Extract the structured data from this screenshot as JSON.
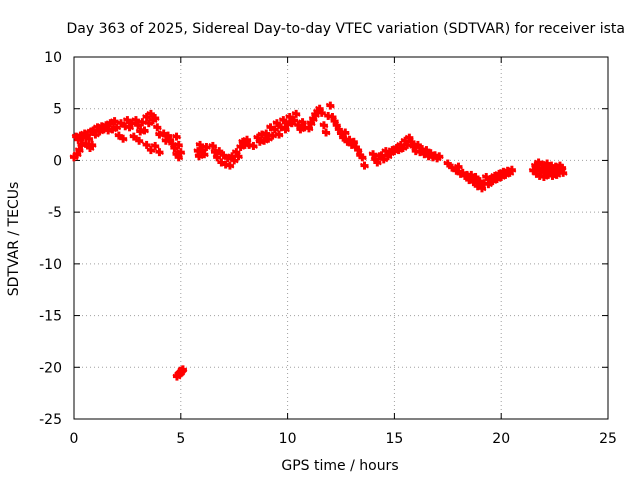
{
  "chart_data": {
    "type": "scatter",
    "title": "Day 363 of 2025, Sidereal Day-to-day VTEC variation (SDTVAR) for receiver ista",
    "xlabel": "GPS time / hours",
    "ylabel": "SDTVAR / TECUs",
    "xlim": [
      0,
      25
    ],
    "ylim": [
      -25,
      10
    ],
    "xticks": [
      0,
      5,
      10,
      15,
      20,
      25
    ],
    "yticks": [
      -25,
      -20,
      -15,
      -10,
      -5,
      0,
      5,
      10
    ],
    "grid": true,
    "marker": "+",
    "series": [
      {
        "name": "SDTVAR",
        "color": "#ff0000",
        "points": [
          [
            0.0,
            0.3
          ],
          [
            0.1,
            2.3
          ],
          [
            0.15,
            0.6
          ],
          [
            0.2,
            2.0
          ],
          [
            0.25,
            1.0
          ],
          [
            0.3,
            2.4
          ],
          [
            0.35,
            1.5
          ],
          [
            0.4,
            2.2
          ],
          [
            0.5,
            2.6
          ],
          [
            0.55,
            1.6
          ],
          [
            0.6,
            2.5
          ],
          [
            0.7,
            2.1
          ],
          [
            0.75,
            1.2
          ],
          [
            0.8,
            2.8
          ],
          [
            0.85,
            1.5
          ],
          [
            0.9,
            2.9
          ],
          [
            1.0,
            2.5
          ],
          [
            1.1,
            3.2
          ],
          [
            1.2,
            2.8
          ],
          [
            1.3,
            3.3
          ],
          [
            1.4,
            3.0
          ],
          [
            1.5,
            3.4
          ],
          [
            1.6,
            2.9
          ],
          [
            1.7,
            3.6
          ],
          [
            1.8,
            3.0
          ],
          [
            1.9,
            3.8
          ],
          [
            2.0,
            3.2
          ],
          [
            2.1,
            2.4
          ],
          [
            2.2,
            3.6
          ],
          [
            2.3,
            2.1
          ],
          [
            2.4,
            3.3
          ],
          [
            2.5,
            3.9
          ],
          [
            2.6,
            3.2
          ],
          [
            2.7,
            3.6
          ],
          [
            2.8,
            2.3
          ],
          [
            2.9,
            3.9
          ],
          [
            3.0,
            3.4
          ],
          [
            3.05,
            1.9
          ],
          [
            3.1,
            2.8
          ],
          [
            3.2,
            3.7
          ],
          [
            3.3,
            2.9
          ],
          [
            3.4,
            4.2
          ],
          [
            3.5,
            3.6
          ],
          [
            3.6,
            4.5
          ],
          [
            3.7,
            3.9
          ],
          [
            3.8,
            4.1
          ],
          [
            3.9,
            3.2
          ],
          [
            4.0,
            2.5
          ],
          [
            3.4,
            1.5
          ],
          [
            3.6,
            1.0
          ],
          [
            3.8,
            1.4
          ],
          [
            4.0,
            0.8
          ],
          [
            4.2,
            2.6
          ],
          [
            4.3,
            1.9
          ],
          [
            4.4,
            2.4
          ],
          [
            4.5,
            2.0
          ],
          [
            4.6,
            1.6
          ],
          [
            4.7,
            1.2
          ],
          [
            4.8,
            2.3
          ],
          [
            4.9,
            1.5
          ],
          [
            4.8,
            0.6
          ],
          [
            4.9,
            0.3
          ],
          [
            5.0,
            0.8
          ],
          [
            4.82,
            -20.9
          ],
          [
            4.9,
            -20.7
          ],
          [
            4.95,
            -20.6
          ],
          [
            5.0,
            -20.5
          ],
          [
            5.05,
            -20.3
          ],
          [
            5.1,
            -20.2
          ],
          [
            5.8,
            0.9
          ],
          [
            5.85,
            0.4
          ],
          [
            5.9,
            1.5
          ],
          [
            6.0,
            1.0
          ],
          [
            6.1,
            0.6
          ],
          [
            6.2,
            1.3
          ],
          [
            6.5,
            1.4
          ],
          [
            6.6,
            0.8
          ],
          [
            6.7,
            0.3
          ],
          [
            6.8,
            0.9
          ],
          [
            6.9,
            -0.2
          ],
          [
            7.0,
            0.5
          ],
          [
            7.1,
            -0.4
          ],
          [
            7.2,
            0.2
          ],
          [
            7.3,
            -0.5
          ],
          [
            7.4,
            0.4
          ],
          [
            7.5,
            0.0
          ],
          [
            7.6,
            0.8
          ],
          [
            7.7,
            0.4
          ],
          [
            7.8,
            1.3
          ],
          [
            7.9,
            1.8
          ],
          [
            8.0,
            1.5
          ],
          [
            8.1,
            2.0
          ],
          [
            8.2,
            1.5
          ],
          [
            8.4,
            1.4
          ],
          [
            8.6,
            2.2
          ],
          [
            8.7,
            1.8
          ],
          [
            8.8,
            2.5
          ],
          [
            8.9,
            1.9
          ],
          [
            9.0,
            2.6
          ],
          [
            9.1,
            2.1
          ],
          [
            9.2,
            3.2
          ],
          [
            9.3,
            2.4
          ],
          [
            9.4,
            3.0
          ],
          [
            9.5,
            3.6
          ],
          [
            9.6,
            2.5
          ],
          [
            9.7,
            3.2
          ],
          [
            9.8,
            3.9
          ],
          [
            9.9,
            3.0
          ],
          [
            10.0,
            3.5
          ],
          [
            10.1,
            4.2
          ],
          [
            10.2,
            3.6
          ],
          [
            10.3,
            3.9
          ],
          [
            10.4,
            4.5
          ],
          [
            10.5,
            3.4
          ],
          [
            10.6,
            3.0
          ],
          [
            10.7,
            3.7
          ],
          [
            10.8,
            3.2
          ],
          [
            11.0,
            3.1
          ],
          [
            11.1,
            3.6
          ],
          [
            11.2,
            4.0
          ],
          [
            11.3,
            4.4
          ],
          [
            11.4,
            4.7
          ],
          [
            11.5,
            5.0
          ],
          [
            11.6,
            4.6
          ],
          [
            11.7,
            3.4
          ],
          [
            11.8,
            2.7
          ],
          [
            11.9,
            4.3
          ],
          [
            12.0,
            5.3
          ],
          [
            12.1,
            4.2
          ],
          [
            12.2,
            3.8
          ],
          [
            12.3,
            3.4
          ],
          [
            12.4,
            3.0
          ],
          [
            12.5,
            2.6
          ],
          [
            12.6,
            2.2
          ],
          [
            12.7,
            2.7
          ],
          [
            12.8,
            1.8
          ],
          [
            12.9,
            2.0
          ],
          [
            13.0,
            1.5
          ],
          [
            13.1,
            1.8
          ],
          [
            13.2,
            1.3
          ],
          [
            13.3,
            1.0
          ],
          [
            13.4,
            0.5
          ],
          [
            13.5,
            0.3
          ],
          [
            13.6,
            -0.5
          ],
          [
            14.0,
            0.6
          ],
          [
            14.1,
            0.1
          ],
          [
            14.2,
            -0.2
          ],
          [
            14.3,
            0.4
          ],
          [
            14.4,
            0.5
          ],
          [
            14.5,
            0.1
          ],
          [
            14.6,
            0.9
          ],
          [
            14.7,
            0.4
          ],
          [
            14.8,
            0.7
          ],
          [
            14.9,
            1.0
          ],
          [
            15.0,
            0.9
          ],
          [
            15.1,
            1.2
          ],
          [
            15.2,
            1.0
          ],
          [
            15.3,
            1.5
          ],
          [
            15.4,
            1.2
          ],
          [
            15.5,
            1.9
          ],
          [
            15.6,
            1.5
          ],
          [
            15.7,
            2.2
          ],
          [
            15.8,
            1.8
          ],
          [
            15.9,
            1.3
          ],
          [
            16.0,
            0.9
          ],
          [
            16.1,
            1.5
          ],
          [
            16.2,
            0.8
          ],
          [
            16.3,
            1.1
          ],
          [
            16.4,
            0.6
          ],
          [
            16.5,
            1.0
          ],
          [
            16.6,
            0.4
          ],
          [
            16.7,
            0.7
          ],
          [
            16.8,
            0.3
          ],
          [
            16.9,
            0.5
          ],
          [
            17.0,
            0.2
          ],
          [
            17.1,
            0.4
          ],
          [
            17.5,
            -0.3
          ],
          [
            17.7,
            -0.7
          ],
          [
            17.9,
            -1.0
          ],
          [
            18.0,
            -0.6
          ],
          [
            18.1,
            -1.3
          ],
          [
            18.2,
            -1.2
          ],
          [
            18.3,
            -1.5
          ],
          [
            18.4,
            -1.4
          ],
          [
            18.5,
            -1.9
          ],
          [
            18.6,
            -1.4
          ],
          [
            18.7,
            -2.1
          ],
          [
            18.8,
            -1.6
          ],
          [
            18.9,
            -2.5
          ],
          [
            19.0,
            -2.0
          ],
          [
            19.1,
            -2.7
          ],
          [
            19.2,
            -2.2
          ],
          [
            19.3,
            -1.6
          ],
          [
            19.4,
            -2.3
          ],
          [
            19.5,
            -1.8
          ],
          [
            19.6,
            -2.0
          ],
          [
            19.7,
            -1.5
          ],
          [
            19.8,
            -1.8
          ],
          [
            19.9,
            -1.3
          ],
          [
            20.0,
            -1.6
          ],
          [
            20.1,
            -1.1
          ],
          [
            20.2,
            -1.4
          ],
          [
            20.3,
            -1.0
          ],
          [
            20.4,
            -1.2
          ],
          [
            20.5,
            -0.9
          ],
          [
            21.5,
            -1.0
          ],
          [
            21.6,
            -0.5
          ],
          [
            21.65,
            -1.3
          ],
          [
            21.7,
            -0.7
          ],
          [
            21.75,
            -0.2
          ],
          [
            21.8,
            -1.5
          ],
          [
            21.85,
            -1.0
          ],
          [
            21.9,
            -0.4
          ],
          [
            21.95,
            -0.9
          ],
          [
            22.0,
            -1.6
          ],
          [
            22.05,
            -0.6
          ],
          [
            22.1,
            -1.2
          ],
          [
            22.15,
            -0.3
          ],
          [
            22.2,
            -1.4
          ],
          [
            22.25,
            -0.8
          ],
          [
            22.3,
            -1.1
          ],
          [
            22.35,
            -0.5
          ],
          [
            22.4,
            -1.5
          ],
          [
            22.45,
            -0.9
          ],
          [
            22.5,
            -1.2
          ],
          [
            22.55,
            -0.6
          ],
          [
            22.6,
            -1.4
          ],
          [
            22.65,
            -0.8
          ],
          [
            22.7,
            -1.1
          ],
          [
            22.75,
            -0.5
          ],
          [
            22.8,
            -1.0
          ],
          [
            22.85,
            -0.7
          ],
          [
            22.9,
            -1.2
          ]
        ]
      }
    ]
  }
}
